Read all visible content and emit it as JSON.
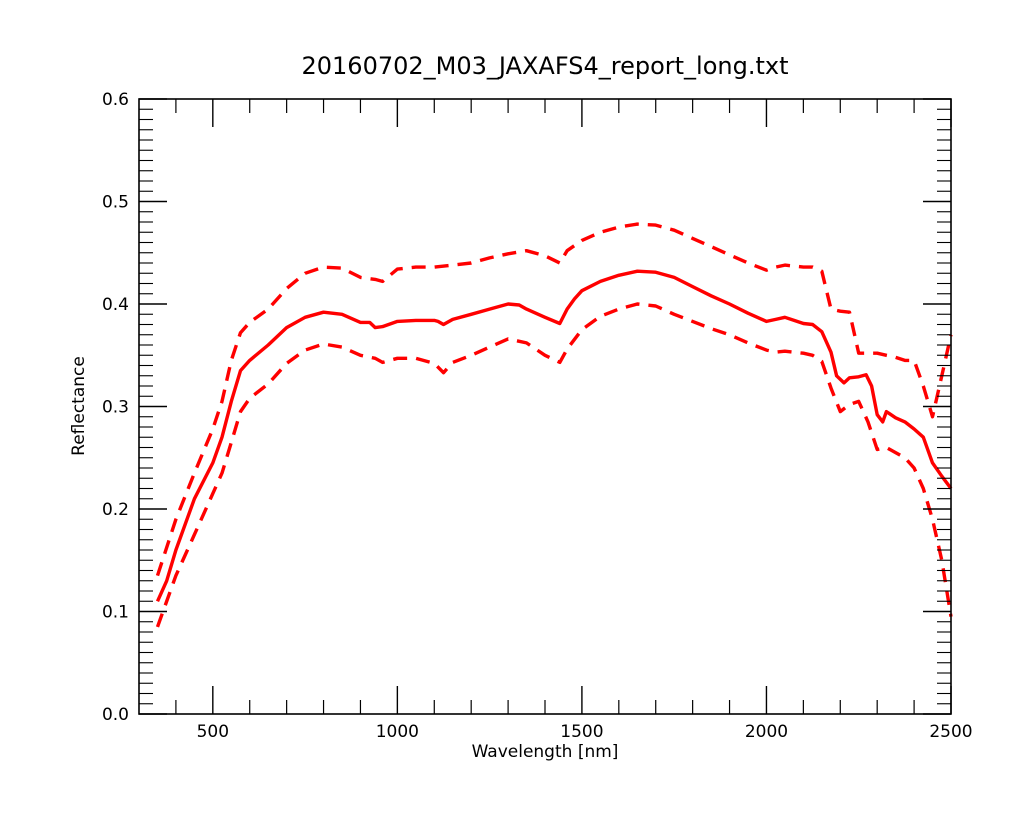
{
  "chart_data": {
    "type": "line",
    "title": "20160702_M03_JAXAFS4_report_long.txt",
    "xlabel": "Wavelength [nm]",
    "ylabel": "Reflectance",
    "xlim": [
      300,
      2500
    ],
    "ylim": [
      0.0,
      0.6
    ],
    "x_ticks": [
      500,
      1000,
      1500,
      2000,
      2500
    ],
    "x_tick_labels": [
      "500",
      "1000",
      "1500",
      "2000",
      "2500"
    ],
    "y_ticks": [
      0.0,
      0.1,
      0.2,
      0.3,
      0.4,
      0.5,
      0.6
    ],
    "y_tick_labels": [
      "0.0",
      "0.1",
      "0.2",
      "0.3",
      "0.4",
      "0.5",
      "0.6"
    ],
    "grid": false,
    "legend": "none",
    "line_color": "#ff0000",
    "series": [
      {
        "style": "solid",
        "x": [
          350,
          375,
          400,
          450,
          500,
          525,
          550,
          575,
          600,
          650,
          700,
          750,
          800,
          850,
          900,
          925,
          940,
          960,
          1000,
          1050,
          1100,
          1110,
          1125,
          1150,
          1200,
          1250,
          1300,
          1330,
          1350,
          1400,
          1440,
          1460,
          1480,
          1500,
          1550,
          1600,
          1650,
          1700,
          1750,
          1800,
          1850,
          1900,
          1950,
          2000,
          2025,
          2050,
          2075,
          2100,
          2125,
          2150,
          2175,
          2190,
          2210,
          2225,
          2250,
          2270,
          2285,
          2300,
          2315,
          2325,
          2350,
          2375,
          2400,
          2425,
          2450,
          2475,
          2500
        ],
        "y": [
          0.11,
          0.13,
          0.16,
          0.21,
          0.245,
          0.27,
          0.305,
          0.335,
          0.345,
          0.36,
          0.377,
          0.387,
          0.392,
          0.39,
          0.382,
          0.382,
          0.377,
          0.378,
          0.383,
          0.384,
          0.384,
          0.383,
          0.38,
          0.385,
          0.39,
          0.395,
          0.4,
          0.399,
          0.395,
          0.387,
          0.381,
          0.395,
          0.405,
          0.413,
          0.422,
          0.428,
          0.432,
          0.431,
          0.426,
          0.417,
          0.408,
          0.4,
          0.391,
          0.383,
          0.385,
          0.387,
          0.384,
          0.381,
          0.38,
          0.373,
          0.353,
          0.33,
          0.323,
          0.328,
          0.329,
          0.331,
          0.32,
          0.292,
          0.285,
          0.295,
          0.289,
          0.285,
          0.278,
          0.27,
          0.245,
          0.232,
          0.22
        ]
      },
      {
        "style": "dashed",
        "x": [
          350,
          400,
          450,
          500,
          525,
          550,
          575,
          600,
          650,
          700,
          750,
          800,
          850,
          900,
          940,
          960,
          1000,
          1050,
          1100,
          1150,
          1200,
          1250,
          1300,
          1350,
          1400,
          1440,
          1460,
          1500,
          1550,
          1600,
          1650,
          1700,
          1750,
          1800,
          1850,
          1900,
          1950,
          2000,
          2025,
          2050,
          2075,
          2100,
          2125,
          2150,
          2175,
          2200,
          2225,
          2250,
          2275,
          2300,
          2325,
          2350,
          2375,
          2400,
          2425,
          2450,
          2475,
          2500
        ],
        "y": [
          0.135,
          0.19,
          0.235,
          0.278,
          0.305,
          0.345,
          0.372,
          0.382,
          0.395,
          0.415,
          0.43,
          0.436,
          0.435,
          0.426,
          0.424,
          0.422,
          0.434,
          0.436,
          0.436,
          0.438,
          0.44,
          0.445,
          0.449,
          0.452,
          0.447,
          0.44,
          0.452,
          0.462,
          0.47,
          0.475,
          0.478,
          0.477,
          0.472,
          0.464,
          0.456,
          0.448,
          0.44,
          0.433,
          0.436,
          0.438,
          0.437,
          0.436,
          0.436,
          0.432,
          0.395,
          0.393,
          0.392,
          0.352,
          0.352,
          0.352,
          0.35,
          0.348,
          0.345,
          0.345,
          0.32,
          0.29,
          0.33,
          0.37
        ]
      },
      {
        "style": "dashed",
        "x": [
          350,
          400,
          450,
          500,
          525,
          550,
          575,
          600,
          650,
          700,
          750,
          800,
          850,
          900,
          940,
          960,
          1000,
          1050,
          1100,
          1125,
          1150,
          1200,
          1250,
          1300,
          1350,
          1400,
          1440,
          1460,
          1500,
          1550,
          1600,
          1650,
          1700,
          1750,
          1800,
          1850,
          1900,
          1950,
          2000,
          2025,
          2050,
          2100,
          2125,
          2150,
          2175,
          2200,
          2225,
          2250,
          2275,
          2300,
          2325,
          2350,
          2375,
          2400,
          2425,
          2450,
          2475,
          2500
        ],
        "y": [
          0.085,
          0.135,
          0.175,
          0.215,
          0.235,
          0.265,
          0.295,
          0.308,
          0.322,
          0.342,
          0.355,
          0.361,
          0.358,
          0.35,
          0.347,
          0.343,
          0.347,
          0.347,
          0.342,
          0.333,
          0.343,
          0.35,
          0.358,
          0.366,
          0.362,
          0.35,
          0.343,
          0.356,
          0.375,
          0.388,
          0.395,
          0.4,
          0.398,
          0.39,
          0.383,
          0.376,
          0.37,
          0.362,
          0.355,
          0.353,
          0.354,
          0.352,
          0.35,
          0.344,
          0.318,
          0.295,
          0.302,
          0.305,
          0.285,
          0.258,
          0.26,
          0.255,
          0.25,
          0.24,
          0.22,
          0.19,
          0.15,
          0.095
        ]
      }
    ]
  }
}
